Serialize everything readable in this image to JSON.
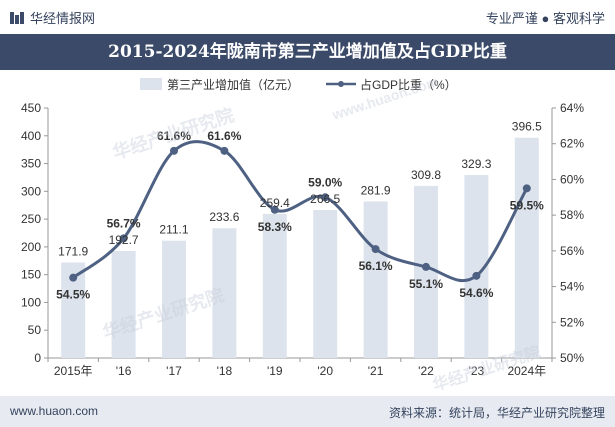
{
  "header": {
    "brand": "华经情报网",
    "tagline": "专业严谨 ● 客观科学",
    "title": "2015-2024年陇南市第三产业增加值及占GDP比重"
  },
  "footer": {
    "left": "www.huaon.com",
    "right": "资料来源：统计局，华经产业研究院整理"
  },
  "watermark": {
    "text": "华经产业研究院",
    "subtext": "www.huaon.com"
  },
  "chart_data": {
    "type": "bar",
    "categories": [
      "2015年",
      "'16",
      "'17",
      "'18",
      "'19",
      "'20",
      "'21",
      "'22",
      "'23",
      "2024年"
    ],
    "series": [
      {
        "name": "第三产业增加值（亿元）",
        "type": "bar",
        "axis": "left",
        "values": [
          171.9,
          192.7,
          211.1,
          233.6,
          259.4,
          266.5,
          281.9,
          309.8,
          329.3,
          396.5
        ],
        "labels": [
          "171.9",
          "192.7",
          "211.1",
          "233.6",
          "259.4",
          "266.5",
          "281.9",
          "309.8",
          "329.3",
          "396.5"
        ],
        "color": "#dde3ec"
      },
      {
        "name": "占GDP比重（%）",
        "type": "line",
        "axis": "right",
        "values": [
          54.5,
          56.7,
          61.6,
          61.6,
          58.3,
          59.0,
          56.1,
          55.1,
          54.6,
          59.5
        ],
        "labels": [
          "54.5%",
          "56.7%",
          "61.6%",
          "61.6%",
          "58.3%",
          "59.0%",
          "56.1%",
          "55.1%",
          "54.6%",
          "59.5%"
        ],
        "color": "#4e6183"
      }
    ],
    "y_left": {
      "min": 0,
      "max": 450,
      "step": 50,
      "ticks": [
        "0",
        "50",
        "100",
        "150",
        "200",
        "250",
        "300",
        "350",
        "400",
        "450"
      ]
    },
    "y_right": {
      "min": 50,
      "max": 64,
      "step": 2,
      "ticks": [
        "50%",
        "52%",
        "54%",
        "56%",
        "58%",
        "60%",
        "62%",
        "64%"
      ]
    },
    "legend_position": "top-center",
    "grid": false
  }
}
